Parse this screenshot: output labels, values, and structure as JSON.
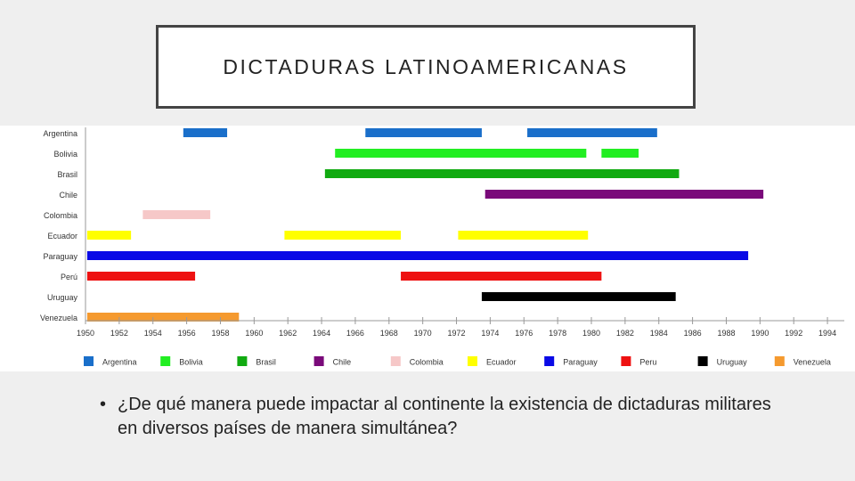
{
  "slide": {
    "title": "DICTADURAS LATINOAMERICANAS",
    "bullet": "•",
    "question": "¿De qué manera puede impactar al continente la existencia de dictaduras militares en diversos países de manera simultánea?"
  },
  "chart_data": {
    "type": "gantt",
    "title": "",
    "xlabel": "",
    "ylabel": "",
    "xlim": [
      1950,
      1995
    ],
    "x_ticks": [
      1950,
      1952,
      1954,
      1956,
      1958,
      1960,
      1962,
      1964,
      1966,
      1968,
      1970,
      1972,
      1974,
      1976,
      1978,
      1980,
      1982,
      1984,
      1986,
      1988,
      1990,
      1992,
      1994
    ],
    "grid": false,
    "legend_position": "bottom",
    "series": [
      {
        "name": "Argentina",
        "color": "#1a6fca",
        "periods": [
          [
            1955.8,
            1958.4
          ],
          [
            1966.6,
            1973.5
          ],
          [
            1976.2,
            1983.9
          ]
        ]
      },
      {
        "name": "Bolivia",
        "color": "#22ee22",
        "periods": [
          [
            1964.8,
            1979.7
          ],
          [
            1980.6,
            1982.8
          ]
        ]
      },
      {
        "name": "Brasil",
        "color": "#11aa11",
        "periods": [
          [
            1964.2,
            1985.2
          ]
        ]
      },
      {
        "name": "Chile",
        "color": "#7a0a7a",
        "periods": [
          [
            1973.7,
            1990.2
          ]
        ]
      },
      {
        "name": "Colombia",
        "color": "#f6c8c8",
        "periods": [
          [
            1953.4,
            1957.4
          ]
        ]
      },
      {
        "name": "Ecuador",
        "color": "#ffff00",
        "periods": [
          [
            1950.1,
            1952.7
          ],
          [
            1961.8,
            1968.7
          ],
          [
            1972.1,
            1979.8
          ]
        ]
      },
      {
        "name": "Paraguay",
        "color": "#0a0ae6",
        "periods": [
          [
            1950.1,
            1989.3
          ]
        ]
      },
      {
        "name": "Perú",
        "color": "#ee1111",
        "periods": [
          [
            1950.1,
            1956.5
          ],
          [
            1968.7,
            1980.6
          ]
        ]
      },
      {
        "name": "Uruguay",
        "color": "#000000",
        "periods": [
          [
            1973.5,
            1985.0
          ]
        ]
      },
      {
        "name": "Venezuela",
        "color": "#f59a2f",
        "periods": [
          [
            1950.1,
            1959.1
          ]
        ]
      }
    ],
    "legend": [
      "Argentina",
      "Bolivia",
      "Brasil",
      "Chile",
      "Colombia",
      "Ecuador",
      "Paraguay",
      "Peru",
      "Uruguay",
      "Venezuela"
    ]
  }
}
